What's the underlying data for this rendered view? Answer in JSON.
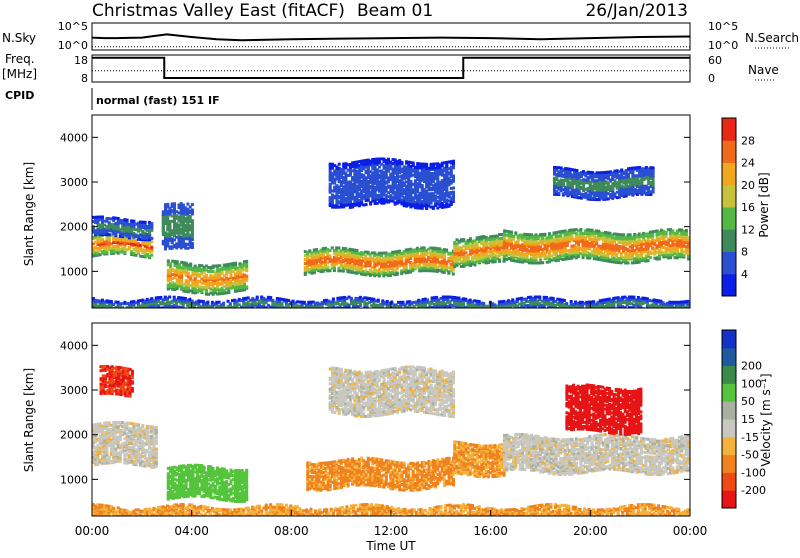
{
  "header": {
    "title": "Christmas Valley East (fitACF)",
    "beam": "Beam 01",
    "date": "26/Jan/2013"
  },
  "top_panels": {
    "nsky_label": "N.Sky",
    "nsearch_label": "N.Search",
    "noise_ticks": [
      "10^5",
      "10^0"
    ],
    "freq_label_1": "Freq.",
    "freq_label_2": "[MHz]",
    "freq_ticks": [
      "18",
      "8"
    ],
    "nave_label": "Nave",
    "nave_ticks": [
      "60",
      "0"
    ],
    "cpid_label": "CPID",
    "cpid_text": "normal (fast) 151 IF"
  },
  "axes": {
    "x_ticks": [
      "00:00",
      "04:00",
      "08:00",
      "12:00",
      "16:00",
      "20:00",
      "00:00"
    ],
    "xlabel": "Time UT",
    "y_ticks": [
      "1000",
      "2000",
      "3000",
      "4000"
    ],
    "ylabel": "Slant Range [km]"
  },
  "colorbars": {
    "power": {
      "label": "Power [dB]",
      "ticks": [
        "4",
        "8",
        "12",
        "16",
        "20",
        "24",
        "28"
      ],
      "colors": [
        "#0a1ee6",
        "#2a4fd1",
        "#3f8a5a",
        "#54b846",
        "#c7c13c",
        "#f0a71e",
        "#f06a1a",
        "#e62814"
      ]
    },
    "velocity": {
      "label": "Velocity [m s⁻¹]",
      "ticks": [
        "-200",
        "-100",
        "-50",
        "-15",
        "15",
        "50",
        "100",
        "200"
      ],
      "colors": [
        "#e61414",
        "#f04a14",
        "#f0821e",
        "#f4b23c",
        "#c8c8c0",
        "#a8b0a0",
        "#55c43c",
        "#3a8a4a",
        "#1e5aa0",
        "#1432c8"
      ]
    }
  },
  "chart_data": [
    {
      "type": "line",
      "title": "N.Sky / N.Search",
      "x_range_hours": [
        0,
        24
      ],
      "series": [
        {
          "name": "N.Sky",
          "x": [
            0,
            0.5,
            1,
            2,
            2.5,
            3,
            4,
            5,
            6,
            8,
            10,
            12,
            14,
            16,
            18,
            20,
            22,
            24
          ],
          "y_log10": [
            2.3,
            2.2,
            2.2,
            2.3,
            2.6,
            2.9,
            2.4,
            2.0,
            1.8,
            2.0,
            2.1,
            2.2,
            2.3,
            2.2,
            2.0,
            2.2,
            2.4,
            2.5
          ]
        },
        {
          "name": "N.Search",
          "x": [
            0,
            24
          ],
          "y_log10": [
            0.6,
            0.6
          ]
        }
      ]
    },
    {
      "type": "line",
      "title": "Freq. / Nave",
      "x_range_hours": [
        0,
        24
      ],
      "series": [
        {
          "name": "Freq. [MHz]",
          "x": [
            0,
            2.9,
            2.9,
            14.9,
            14.9,
            24
          ],
          "y": [
            17,
            17,
            9.5,
            9.5,
            17,
            17
          ]
        },
        {
          "name": "Nave",
          "x": [
            0,
            24
          ],
          "y": [
            25,
            25
          ]
        }
      ]
    },
    {
      "type": "heatmap",
      "title": "Power [dB]",
      "x_range_hours": [
        0,
        24
      ],
      "y_range_km": [
        180,
        4500
      ],
      "bands": [
        {
          "x": [
            0,
            2.4
          ],
          "center_km": 1620,
          "width_km": 240,
          "peak_db": 28
        },
        {
          "x": [
            0,
            2.4
          ],
          "center_km": 2000,
          "width_km": 200,
          "peak_db": 10
        },
        {
          "x": [
            2.8,
            4.0
          ],
          "center_km": 2000,
          "width_km": 500,
          "peak_db": 12
        },
        {
          "x": [
            3.0,
            6.2
          ],
          "center_km": 900,
          "width_km": 320,
          "peak_db": 26
        },
        {
          "x": [
            8.5,
            14.5
          ],
          "center_km": 1250,
          "width_km": 260,
          "peak_db": 28
        },
        {
          "x": [
            14.5,
            16.5
          ],
          "center_km": 1500,
          "width_km": 300,
          "peak_db": 27
        },
        {
          "x": [
            16.5,
            24
          ],
          "center_km": 1600,
          "width_km": 320,
          "peak_db": 28
        },
        {
          "x": [
            9.5,
            14.5
          ],
          "center_km": 3000,
          "width_km": 500,
          "peak_db": 8
        },
        {
          "x": [
            18.5,
            22.5
          ],
          "center_km": 3000,
          "width_km": 300,
          "peak_db": 10
        },
        {
          "x": [
            0,
            24
          ],
          "center_km": 280,
          "width_km": 120,
          "peak_db": 10
        }
      ]
    },
    {
      "type": "heatmap",
      "title": "Velocity [m/s]",
      "x_range_hours": [
        0,
        24
      ],
      "y_range_km": [
        180,
        4500
      ],
      "bands": [
        {
          "x": [
            0,
            2.6
          ],
          "center_km": 1800,
          "width_km": 450,
          "velocity": 0
        },
        {
          "x": [
            3.0,
            6.2
          ],
          "center_km": 950,
          "width_km": 350,
          "velocity": 80
        },
        {
          "x": [
            8.6,
            14.5
          ],
          "center_km": 1150,
          "width_km": 300,
          "velocity": -60
        },
        {
          "x": [
            14.5,
            16.5
          ],
          "center_km": 1500,
          "width_km": 350,
          "velocity": -50
        },
        {
          "x": [
            16.5,
            24
          ],
          "center_km": 1600,
          "width_km": 400,
          "velocity": 0
        },
        {
          "x": [
            9.5,
            14.5
          ],
          "center_km": 3000,
          "width_km": 500,
          "velocity": 0
        },
        {
          "x": [
            19.0,
            22.0
          ],
          "center_km": 2600,
          "width_km": 500,
          "velocity": -250
        },
        {
          "x": [
            0.3,
            1.6
          ],
          "center_km": 3200,
          "width_km": 300,
          "velocity": -200
        },
        {
          "x": [
            0,
            24
          ],
          "center_km": 280,
          "width_km": 140,
          "velocity": -50
        }
      ]
    }
  ]
}
